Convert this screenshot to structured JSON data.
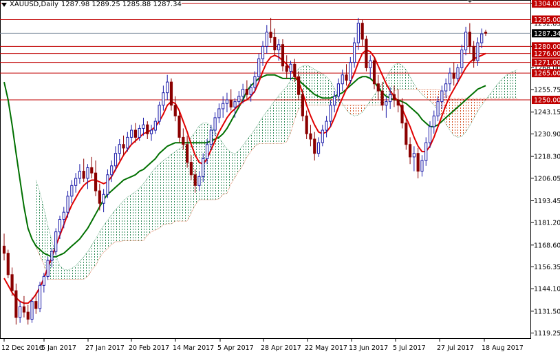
{
  "header": {
    "symbol": "XAUUSD,Daily",
    "ohlc": "1287.98 1289.25 1285.88 1287.34"
  },
  "chart_data": {
    "type": "candlestick",
    "title": "XAUUSD,Daily",
    "ylim": [
      1116.0,
      1306.0
    ],
    "y_ticks": [
      "1304.00",
      "1292.85",
      "1280.00",
      "1268.00",
      "1255.75",
      "1243.15",
      "1230.90",
      "1218.30",
      "1206.05",
      "1193.45",
      "1181.20",
      "1168.60",
      "1156.35",
      "1144.10",
      "1131.50",
      "1119.25"
    ],
    "x_ticks": [
      "12 Dec 2016",
      "5 Jan 2017",
      "27 Jan 2017",
      "20 Feb 2017",
      "14 Mar 2017",
      "5 Apr 2017",
      "28 Apr 2017",
      "22 May 2017",
      "13 Jun 2017",
      "5 Jul 2017",
      "27 Jul 2017",
      "18 Aug 2017"
    ],
    "current_price": "1287.34",
    "levels": [
      {
        "value": 1304.0,
        "label": "1304.00"
      },
      {
        "value": 1295.0,
        "label": "1295.00"
      },
      {
        "value": 1280.0,
        "label": "1280.00"
      },
      {
        "value": 1276.0,
        "label": "1276.00"
      },
      {
        "value": 1271.0,
        "label": "1271.00"
      },
      {
        "value": 1265.0,
        "label": "1265.00"
      },
      {
        "value": 1250.0,
        "label": "1250.00"
      }
    ],
    "tenkan_kijun_note": "Ichimoku Kinko Hyo overlay",
    "colors": {
      "bull": "#1a1aa8",
      "bear": "#8b0000",
      "tenkan": "#e00000",
      "kijun": "#007000",
      "cloud_red": "#d24a1a",
      "cloud_green": "#2e8b57",
      "level": "#c00000",
      "price_box": "#000000"
    },
    "candles": [
      [
        1168.0,
        1175.0,
        1160.0,
        1164.0
      ],
      [
        1164.0,
        1166.0,
        1150.0,
        1152.0
      ],
      [
        1152.0,
        1156.0,
        1140.0,
        1143.0
      ],
      [
        1143.0,
        1147.0,
        1124.0,
        1128.0
      ],
      [
        1128.0,
        1137.0,
        1125.0,
        1134.0
      ],
      [
        1134.0,
        1140.0,
        1128.0,
        1131.0
      ],
      [
        1131.0,
        1135.0,
        1124.0,
        1127.0
      ],
      [
        1127.0,
        1139.0,
        1125.0,
        1137.0
      ],
      [
        1137.0,
        1142.0,
        1130.0,
        1133.0
      ],
      [
        1133.0,
        1148.0,
        1131.0,
        1146.0
      ],
      [
        1146.0,
        1153.0,
        1142.0,
        1151.0
      ],
      [
        1151.0,
        1162.0,
        1149.0,
        1160.0
      ],
      [
        1160.0,
        1167.0,
        1156.0,
        1165.0
      ],
      [
        1165.0,
        1178.0,
        1163.0,
        1176.0
      ],
      [
        1176.0,
        1185.0,
        1172.0,
        1183.0
      ],
      [
        1183.0,
        1190.0,
        1178.0,
        1187.0
      ],
      [
        1187.0,
        1199.0,
        1184.0,
        1196.0
      ],
      [
        1196.0,
        1205.0,
        1192.0,
        1202.0
      ],
      [
        1202.0,
        1209.0,
        1198.0,
        1206.0
      ],
      [
        1206.0,
        1214.0,
        1203.0,
        1210.0
      ],
      [
        1210.0,
        1217.0,
        1204.0,
        1206.0
      ],
      [
        1206.0,
        1214.0,
        1200.0,
        1212.0
      ],
      [
        1212.0,
        1218.0,
        1206.0,
        1209.0
      ],
      [
        1209.0,
        1216.0,
        1196.0,
        1199.0
      ],
      [
        1199.0,
        1203.0,
        1188.0,
        1192.0
      ],
      [
        1192.0,
        1200.0,
        1187.0,
        1197.0
      ],
      [
        1197.0,
        1211.0,
        1195.0,
        1208.0
      ],
      [
        1208.0,
        1216.0,
        1204.0,
        1213.0
      ],
      [
        1213.0,
        1224.0,
        1210.0,
        1220.0
      ],
      [
        1220.0,
        1228.0,
        1216.0,
        1225.0
      ],
      [
        1225.0,
        1230.0,
        1219.0,
        1223.0
      ],
      [
        1223.0,
        1232.0,
        1221.0,
        1229.0
      ],
      [
        1229.0,
        1236.0,
        1225.0,
        1233.0
      ],
      [
        1233.0,
        1237.0,
        1226.0,
        1229.0
      ],
      [
        1229.0,
        1236.0,
        1227.0,
        1234.0
      ],
      [
        1234.0,
        1240.0,
        1230.0,
        1236.0
      ],
      [
        1236.0,
        1238.0,
        1228.0,
        1231.0
      ],
      [
        1231.0,
        1236.0,
        1227.0,
        1233.0
      ],
      [
        1233.0,
        1240.0,
        1231.0,
        1238.0
      ],
      [
        1238.0,
        1249.0,
        1236.0,
        1247.0
      ],
      [
        1247.0,
        1258.0,
        1244.0,
        1254.0
      ],
      [
        1254.0,
        1264.0,
        1250.0,
        1260.0
      ],
      [
        1260.0,
        1262.0,
        1244.0,
        1247.0
      ],
      [
        1247.0,
        1252.0,
        1238.0,
        1241.0
      ],
      [
        1241.0,
        1244.0,
        1226.0,
        1229.0
      ],
      [
        1229.0,
        1234.0,
        1222.0,
        1225.0
      ],
      [
        1225.0,
        1230.0,
        1212.0,
        1215.0
      ],
      [
        1215.0,
        1219.0,
        1205.0,
        1208.0
      ],
      [
        1208.0,
        1211.0,
        1198.0,
        1202.0
      ],
      [
        1202.0,
        1210.0,
        1199.0,
        1207.0
      ],
      [
        1207.0,
        1220.0,
        1204.0,
        1217.0
      ],
      [
        1217.0,
        1228.0,
        1214.0,
        1225.0
      ],
      [
        1225.0,
        1236.0,
        1222.0,
        1233.0
      ],
      [
        1233.0,
        1243.0,
        1230.0,
        1240.0
      ],
      [
        1240.0,
        1248.0,
        1237.0,
        1245.0
      ],
      [
        1245.0,
        1252.0,
        1240.0,
        1248.0
      ],
      [
        1248.0,
        1254.0,
        1243.0,
        1250.0
      ],
      [
        1250.0,
        1256.0,
        1244.0,
        1246.0
      ],
      [
        1246.0,
        1251.0,
        1240.0,
        1249.0
      ],
      [
        1249.0,
        1255.0,
        1246.0,
        1252.0
      ],
      [
        1252.0,
        1259.0,
        1248.0,
        1256.0
      ],
      [
        1256.0,
        1261.0,
        1250.0,
        1253.0
      ],
      [
        1253.0,
        1259.0,
        1249.0,
        1257.0
      ],
      [
        1257.0,
        1266.0,
        1254.0,
        1263.0
      ],
      [
        1263.0,
        1276.0,
        1260.0,
        1273.0
      ],
      [
        1273.0,
        1283.0,
        1269.0,
        1280.0
      ],
      [
        1280.0,
        1292.0,
        1276.0,
        1288.0
      ],
      [
        1288.0,
        1296.0,
        1282.0,
        1285.0
      ],
      [
        1285.0,
        1290.0,
        1275.0,
        1278.0
      ],
      [
        1278.0,
        1284.0,
        1272.0,
        1281.0
      ],
      [
        1281.0,
        1284.0,
        1266.0,
        1269.0
      ],
      [
        1269.0,
        1275.0,
        1262.0,
        1266.0
      ],
      [
        1266.0,
        1272.0,
        1261.0,
        1270.0
      ],
      [
        1270.0,
        1273.0,
        1260.0,
        1263.0
      ],
      [
        1263.0,
        1266.0,
        1250.0,
        1253.0
      ],
      [
        1253.0,
        1256.0,
        1238.0,
        1241.0
      ],
      [
        1241.0,
        1244.0,
        1228.0,
        1231.0
      ],
      [
        1231.0,
        1236.0,
        1224.0,
        1228.0
      ],
      [
        1228.0,
        1232.0,
        1216.0,
        1220.0
      ],
      [
        1220.0,
        1229.0,
        1218.0,
        1226.0
      ],
      [
        1226.0,
        1236.0,
        1224.0,
        1233.0
      ],
      [
        1233.0,
        1241.0,
        1229.0,
        1238.0
      ],
      [
        1238.0,
        1250.0,
        1235.0,
        1247.0
      ],
      [
        1247.0,
        1255.0,
        1243.0,
        1252.0
      ],
      [
        1252.0,
        1262.0,
        1249.0,
        1259.0
      ],
      [
        1259.0,
        1267.0,
        1255.0,
        1264.0
      ],
      [
        1264.0,
        1270.0,
        1258.0,
        1261.0
      ],
      [
        1261.0,
        1274.0,
        1259.0,
        1271.0
      ],
      [
        1271.0,
        1285.0,
        1268.0,
        1282.0
      ],
      [
        1282.0,
        1296.0,
        1278.0,
        1293.0
      ],
      [
        1293.0,
        1295.0,
        1280.0,
        1284.0
      ],
      [
        1284.0,
        1286.0,
        1266.0,
        1268.0
      ],
      [
        1268.0,
        1275.0,
        1262.0,
        1272.0
      ],
      [
        1272.0,
        1274.0,
        1256.0,
        1259.0
      ],
      [
        1259.0,
        1264.0,
        1250.0,
        1255.0
      ],
      [
        1255.0,
        1260.0,
        1244.0,
        1247.0
      ],
      [
        1247.0,
        1252.0,
        1240.0,
        1249.0
      ],
      [
        1249.0,
        1257.0,
        1245.0,
        1253.0
      ],
      [
        1253.0,
        1258.0,
        1246.0,
        1250.0
      ],
      [
        1250.0,
        1256.0,
        1243.0,
        1247.0
      ],
      [
        1247.0,
        1251.0,
        1234.0,
        1237.0
      ],
      [
        1237.0,
        1240.0,
        1222.0,
        1225.0
      ],
      [
        1225.0,
        1229.0,
        1214.0,
        1218.0
      ],
      [
        1218.0,
        1224.0,
        1210.0,
        1220.0
      ],
      [
        1220.0,
        1223.0,
        1206.0,
        1210.0
      ],
      [
        1210.0,
        1219.0,
        1207.0,
        1216.0
      ],
      [
        1216.0,
        1229.0,
        1213.0,
        1226.0
      ],
      [
        1226.0,
        1238.0,
        1223.0,
        1235.0
      ],
      [
        1235.0,
        1244.0,
        1231.0,
        1241.0
      ],
      [
        1241.0,
        1252.0,
        1238.0,
        1249.0
      ],
      [
        1249.0,
        1258.0,
        1245.0,
        1255.0
      ],
      [
        1255.0,
        1262.0,
        1251.0,
        1259.0
      ],
      [
        1259.0,
        1268.0,
        1255.0,
        1265.0
      ],
      [
        1265.0,
        1271.0,
        1258.0,
        1262.0
      ],
      [
        1262.0,
        1270.0,
        1259.0,
        1268.0
      ],
      [
        1268.0,
        1281.0,
        1265.0,
        1278.0
      ],
      [
        1278.0,
        1291.0,
        1275.0,
        1288.0
      ],
      [
        1288.0,
        1293.0,
        1276.0,
        1280.0
      ],
      [
        1280.0,
        1283.0,
        1268.0,
        1272.0
      ],
      [
        1272.0,
        1285.0,
        1269.0,
        1282.0
      ],
      [
        1282.0,
        1290.0,
        1279.0,
        1287.0
      ],
      [
        1287.98,
        1289.25,
        1285.88,
        1287.34
      ]
    ],
    "tenkan": [
      1150,
      1146,
      1142,
      1139,
      1137,
      1136,
      1136,
      1138,
      1141,
      1145,
      1150,
      1156,
      1162,
      1168,
      1174,
      1180,
      1186,
      1191,
      1195,
      1199,
      1202,
      1204,
      1205,
      1205,
      1204,
      1203,
      1204,
      1207,
      1211,
      1215,
      1219,
      1222,
      1225,
      1227,
      1229,
      1231,
      1232,
      1233,
      1235,
      1238,
      1242,
      1247,
      1249,
      1248,
      1244,
      1238,
      1232,
      1225,
      1219,
      1215,
      1214,
      1217,
      1222,
      1227,
      1232,
      1236,
      1240,
      1243,
      1245,
      1247,
      1249,
      1250,
      1252,
      1255,
      1260,
      1266,
      1271,
      1274,
      1275,
      1274,
      1272,
      1270,
      1267,
      1264,
      1260,
      1254,
      1247,
      1241,
      1236,
      1232,
      1231,
      1232,
      1235,
      1240,
      1246,
      1251,
      1256,
      1260,
      1265,
      1271,
      1276,
      1278,
      1277,
      1274,
      1269,
      1264,
      1259,
      1255,
      1252,
      1249,
      1245,
      1240,
      1235,
      1229,
      1224,
      1221,
      1221,
      1224,
      1229,
      1235,
      1241,
      1247,
      1252,
      1256,
      1260,
      1264,
      1268,
      1271,
      1273,
      1274,
      1275,
      1276
    ],
    "kijun": [
      1260,
      1250,
      1236,
      1220,
      1205,
      1190,
      1178,
      1172,
      1168,
      1166,
      1164,
      1163,
      1162,
      1162,
      1163,
      1164,
      1166,
      1168,
      1170,
      1172,
      1175,
      1178,
      1182,
      1186,
      1190,
      1194,
      1197,
      1199,
      1201,
      1203,
      1205,
      1206,
      1207,
      1208,
      1210,
      1211,
      1213,
      1215,
      1217,
      1220,
      1222,
      1224,
      1225,
      1226,
      1226,
      1226,
      1226,
      1226,
      1226,
      1226,
      1226,
      1226,
      1227,
      1228,
      1229,
      1231,
      1234,
      1238,
      1242,
      1246,
      1250,
      1255,
      1258,
      1260,
      1262,
      1263,
      1264,
      1264,
      1264,
      1263,
      1262,
      1262,
      1262,
      1262,
      1261,
      1259,
      1257,
      1255,
      1253,
      1252,
      1251,
      1251,
      1251,
      1252,
      1253,
      1254,
      1256,
      1258,
      1260,
      1262,
      1263,
      1263,
      1262,
      1260,
      1257,
      1254,
      1252,
      1251,
      1250,
      1250,
      1249,
      1248,
      1246,
      1244,
      1242,
      1239,
      1237,
      1235,
      1235,
      1236,
      1238,
      1240,
      1242,
      1244,
      1246,
      1248,
      1250,
      1252,
      1254,
      1256,
      1257,
      1258
    ]
  }
}
